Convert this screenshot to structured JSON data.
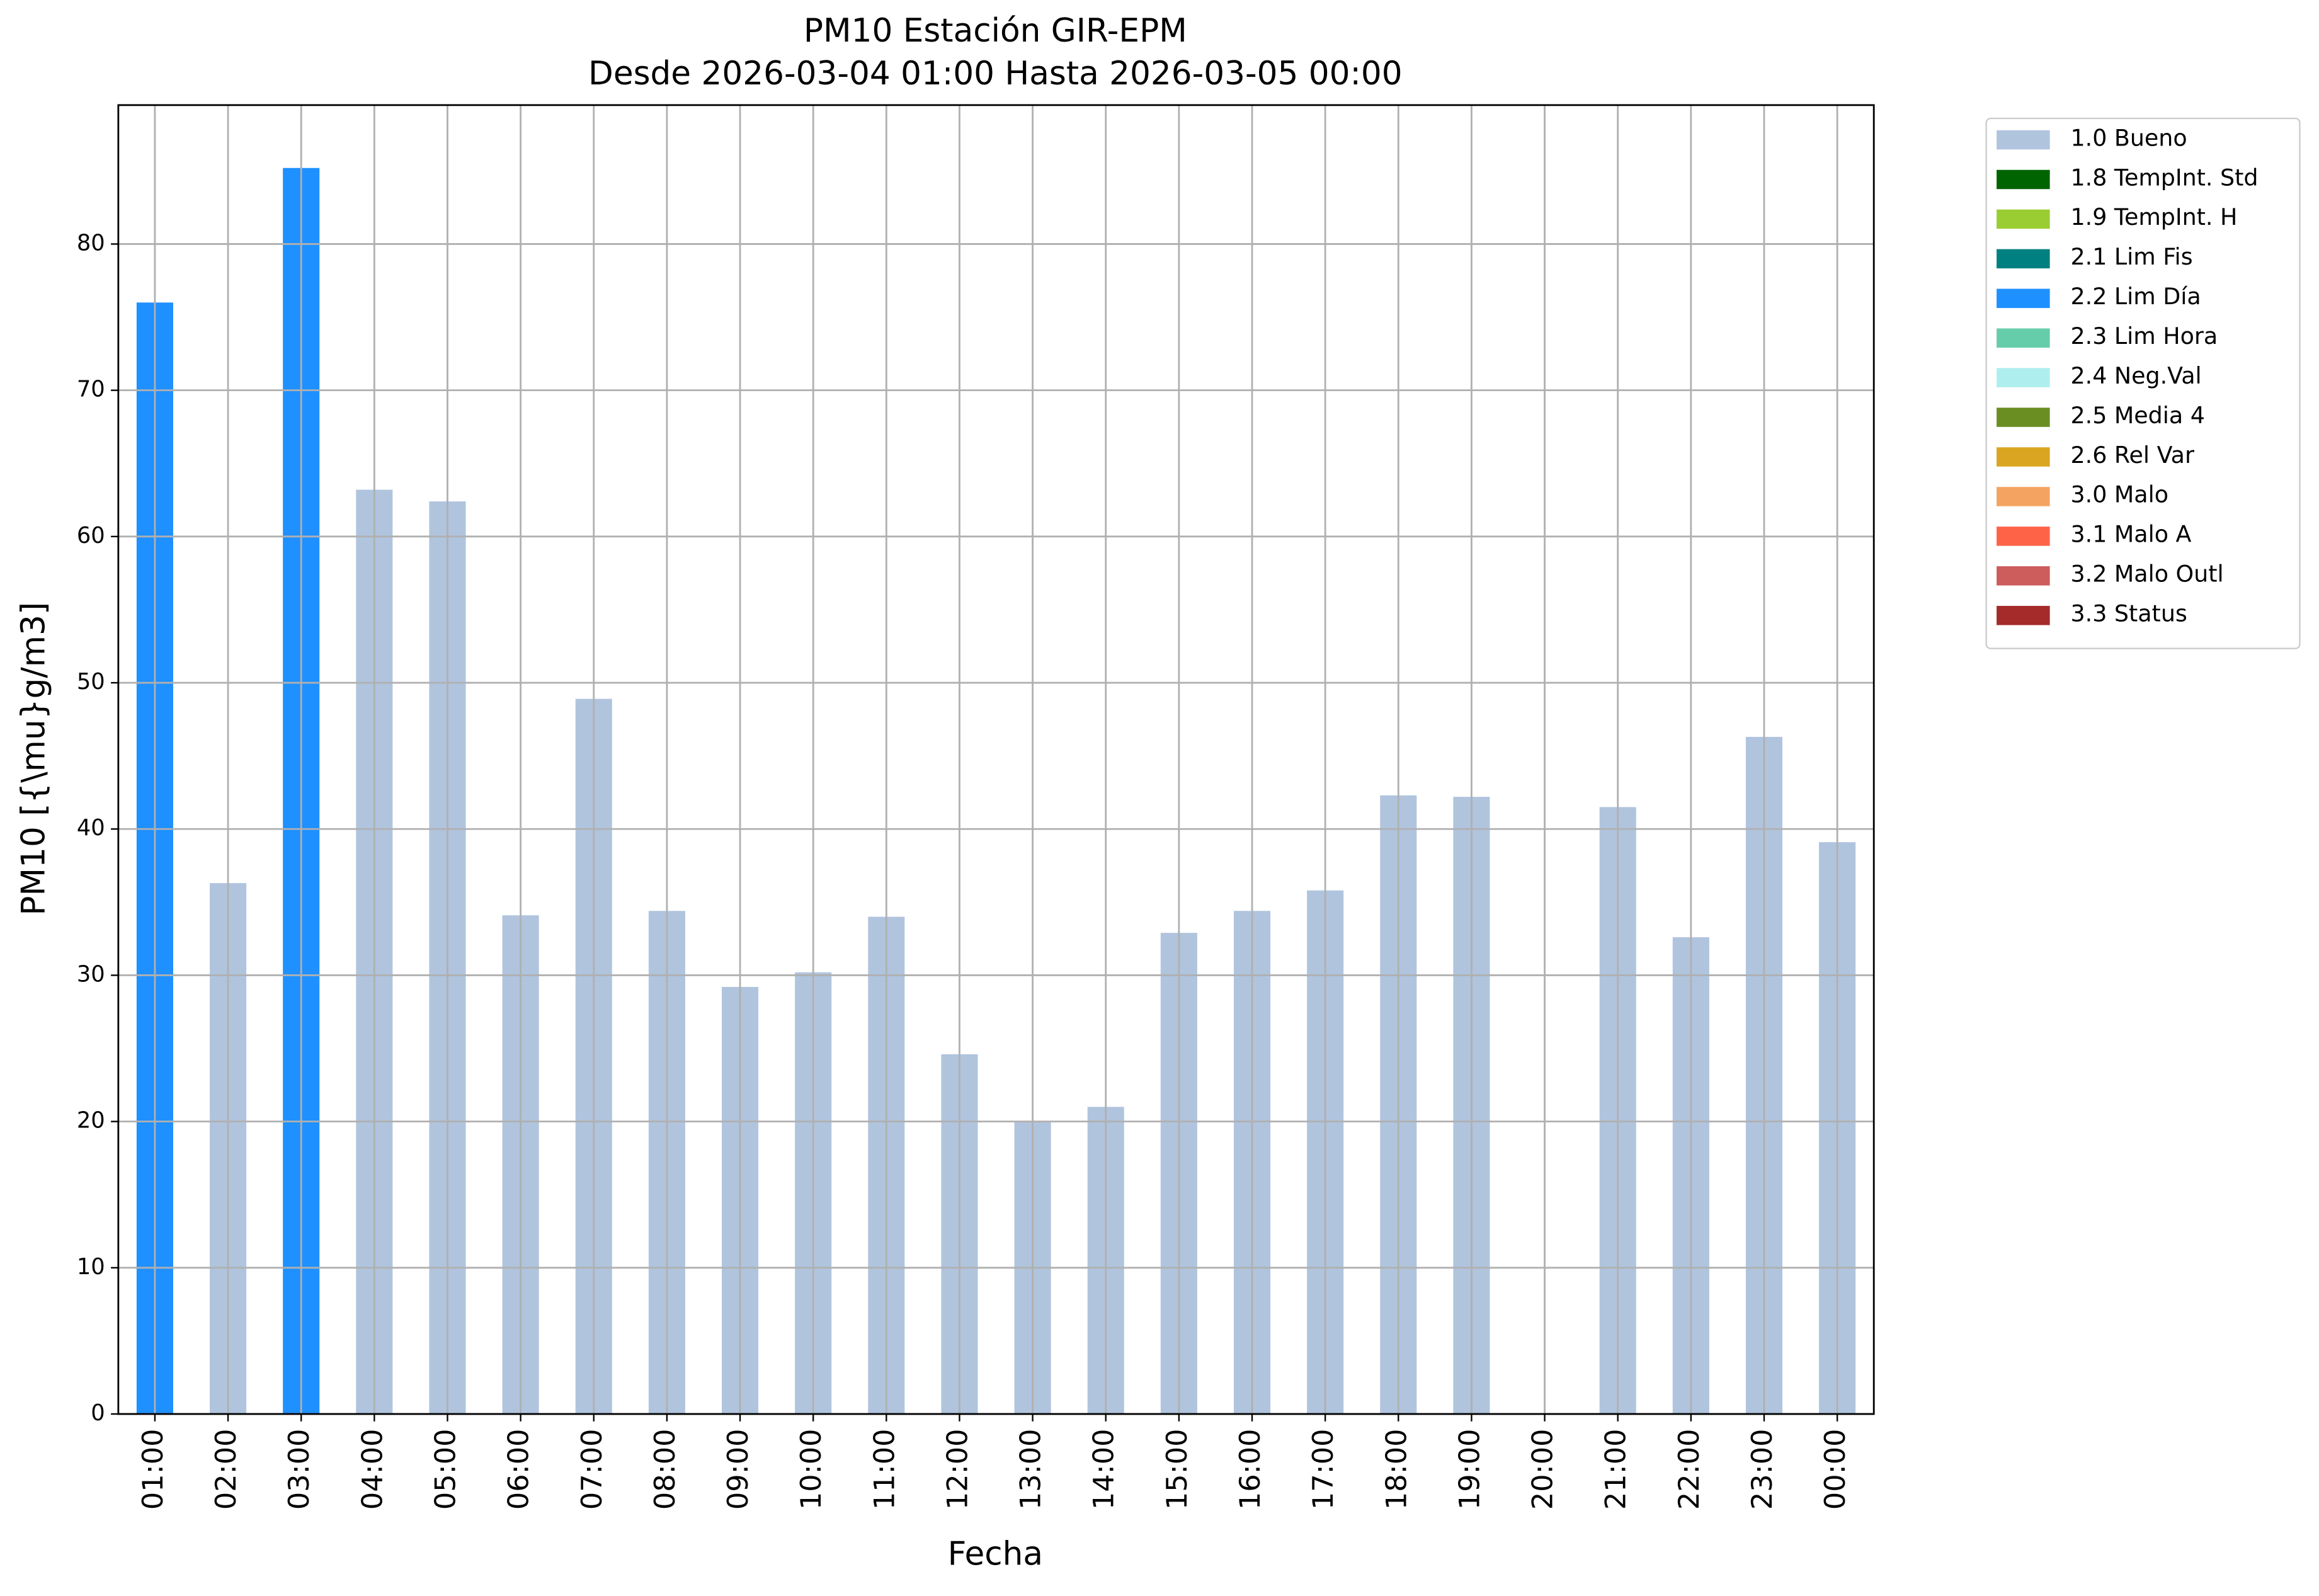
{
  "chart_data": {
    "type": "stacked_bar",
    "title": "PM10 Estación GIR-EPM",
    "subtitle": "Desde 2026-03-04 01:00 Hasta 2026-03-05 00:00",
    "x_label": "Fecha",
    "y_label": "PM10 [{\\mu}g/m3]",
    "categories": [
      "01:00",
      "02:00",
      "03:00",
      "04:00",
      "05:00",
      "06:00",
      "07:00",
      "08:00",
      "09:00",
      "10:00",
      "11:00",
      "12:00",
      "13:00",
      "14:00",
      "15:00",
      "16:00",
      "17:00",
      "18:00",
      "19:00",
      "20:00",
      "21:00",
      "22:00",
      "23:00",
      "00:00"
    ],
    "series": [
      {
        "name": "1.0 Bueno",
        "color": "#b0c4de",
        "values": [
          null,
          36.3,
          null,
          63.2,
          62.4,
          34.1,
          48.9,
          34.4,
          29.2,
          30.2,
          34.0,
          24.6,
          20.0,
          21.0,
          32.9,
          34.4,
          35.8,
          42.3,
          42.2,
          null,
          41.5,
          32.6,
          46.3,
          39.1
        ]
      },
      {
        "name": "1.8 TempInt. Std",
        "color": "#006400",
        "values": [
          null,
          null,
          null,
          null,
          null,
          null,
          null,
          null,
          null,
          null,
          null,
          null,
          null,
          null,
          null,
          null,
          null,
          null,
          null,
          null,
          null,
          null,
          null,
          null
        ]
      },
      {
        "name": "1.9 TempInt. H",
        "color": "#9acd32",
        "values": [
          null,
          null,
          null,
          null,
          null,
          null,
          null,
          null,
          null,
          null,
          null,
          null,
          null,
          null,
          null,
          null,
          null,
          null,
          null,
          null,
          null,
          null,
          null,
          null
        ]
      },
      {
        "name": "2.1 Lim Fis",
        "color": "#008080",
        "values": [
          null,
          null,
          null,
          null,
          null,
          null,
          null,
          null,
          null,
          null,
          null,
          null,
          null,
          null,
          null,
          null,
          null,
          null,
          null,
          null,
          null,
          null,
          null,
          null
        ]
      },
      {
        "name": "2.2 Lim Día",
        "color": "#1e90ff",
        "values": [
          76.0,
          null,
          85.2,
          null,
          null,
          null,
          null,
          null,
          null,
          null,
          null,
          null,
          null,
          null,
          null,
          null,
          null,
          null,
          null,
          null,
          null,
          null,
          null,
          null
        ]
      },
      {
        "name": "2.3 Lim Hora",
        "color": "#66cdaa",
        "values": [
          null,
          null,
          null,
          null,
          null,
          null,
          null,
          null,
          null,
          null,
          null,
          null,
          null,
          null,
          null,
          null,
          null,
          null,
          null,
          null,
          null,
          null,
          null,
          null
        ]
      },
      {
        "name": "2.4 Neg.Val",
        "color": "#afeeee",
        "values": [
          null,
          null,
          null,
          null,
          null,
          null,
          null,
          null,
          null,
          null,
          null,
          null,
          null,
          null,
          null,
          null,
          null,
          null,
          null,
          null,
          null,
          null,
          null,
          null
        ]
      },
      {
        "name": "2.5 Media 4",
        "color": "#6b8e23",
        "values": [
          null,
          null,
          null,
          null,
          null,
          null,
          null,
          null,
          null,
          null,
          null,
          null,
          null,
          null,
          null,
          null,
          null,
          null,
          null,
          null,
          null,
          null,
          null,
          null
        ]
      },
      {
        "name": "2.6 Rel Var",
        "color": "#daa520",
        "values": [
          null,
          null,
          null,
          null,
          null,
          null,
          null,
          null,
          null,
          null,
          null,
          null,
          null,
          null,
          null,
          null,
          null,
          null,
          null,
          null,
          null,
          null,
          null,
          null
        ]
      },
      {
        "name": "3.0 Malo",
        "color": "#f4a460",
        "values": [
          null,
          null,
          null,
          null,
          null,
          null,
          null,
          null,
          null,
          null,
          null,
          null,
          null,
          null,
          null,
          null,
          null,
          null,
          null,
          null,
          null,
          null,
          null,
          null
        ]
      },
      {
        "name": "3.1 Malo A",
        "color": "#ff6347",
        "values": [
          null,
          null,
          null,
          null,
          null,
          null,
          null,
          null,
          null,
          null,
          null,
          null,
          null,
          null,
          null,
          null,
          null,
          null,
          null,
          null,
          null,
          null,
          null,
          null
        ]
      },
      {
        "name": "3.2 Malo Outl",
        "color": "#cd5c5c",
        "values": [
          null,
          null,
          null,
          null,
          null,
          null,
          null,
          null,
          null,
          null,
          null,
          null,
          null,
          null,
          null,
          null,
          null,
          null,
          null,
          null,
          null,
          null,
          null,
          null
        ]
      },
      {
        "name": "3.3 Status",
        "color": "#a52a2a",
        "values": [
          null,
          null,
          null,
          null,
          null,
          null,
          null,
          null,
          null,
          null,
          null,
          null,
          null,
          null,
          null,
          null,
          null,
          null,
          null,
          null,
          null,
          null,
          null,
          null
        ]
      }
    ],
    "ylim": [
      0,
      89.5
    ],
    "yticks": [
      0,
      10,
      20,
      30,
      40,
      50,
      60,
      70,
      80
    ],
    "grid": true,
    "legend": "outside-right"
  }
}
